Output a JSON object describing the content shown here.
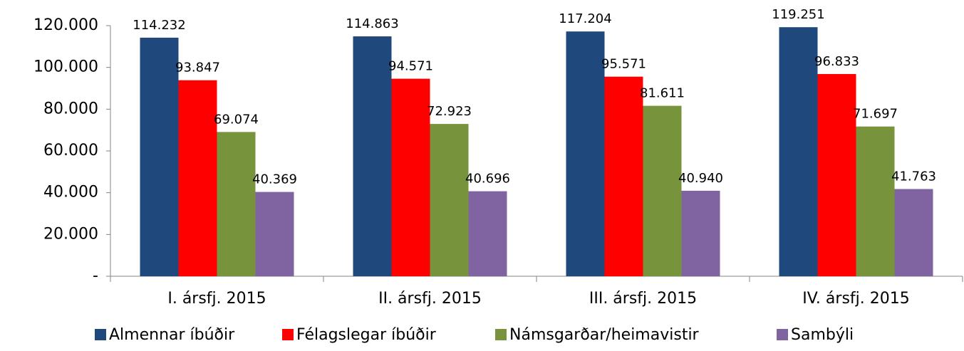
{
  "chart_data": {
    "type": "bar",
    "categories": [
      "I. ársfj. 2015",
      "II. ársfj. 2015",
      "III. ársfj. 2015",
      "IV. ársfj. 2015"
    ],
    "series": [
      {
        "name": "Almennar íbúðir",
        "color": "#1f497d",
        "values": [
          114232,
          114863,
          117204,
          119251
        ],
        "value_labels": [
          "114.232",
          "114.863",
          "117.204",
          "119.251"
        ]
      },
      {
        "name": "Félagslegar íbúðir",
        "color": "#ff0000",
        "values": [
          93847,
          94571,
          95571,
          96833
        ],
        "value_labels": [
          "93.847",
          "94.571",
          "95.571",
          "96.833"
        ]
      },
      {
        "name": "Námsgarðar/heimavistir",
        "color": "#77933c",
        "values": [
          69074,
          72923,
          81611,
          71697
        ],
        "value_labels": [
          "69.074",
          "72.923",
          "81.611",
          "71.697"
        ]
      },
      {
        "name": "Sambýli",
        "color": "#8064a2",
        "values": [
          40369,
          40696,
          40940,
          41763
        ],
        "value_labels": [
          "40.369",
          "40.696",
          "40.940",
          "41.763"
        ]
      }
    ],
    "ylim": [
      0,
      120000
    ],
    "yticks": [
      {
        "value": 0,
        "label": "-"
      },
      {
        "value": 20000,
        "label": "20.000"
      },
      {
        "value": 40000,
        "label": "40.000"
      },
      {
        "value": 60000,
        "label": "60.000"
      },
      {
        "value": 80000,
        "label": "80.000"
      },
      {
        "value": 100000,
        "label": "100.000"
      },
      {
        "value": 120000,
        "label": "120.000"
      }
    ],
    "legend": "bottom"
  }
}
